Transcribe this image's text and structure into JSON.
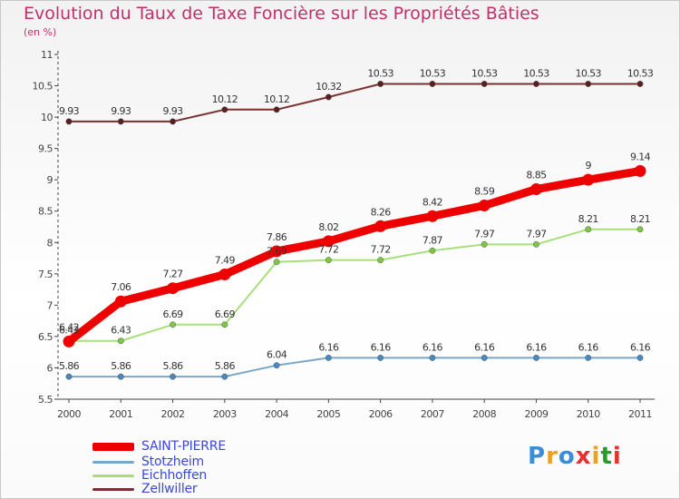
{
  "header": {
    "title": "Evolution du Taux de Taxe Foncière sur les Propriétés Bâties",
    "subtitle": "(en %)"
  },
  "brand": {
    "logo_text": "Proxiti"
  },
  "chart_data": {
    "type": "line",
    "x": [
      "2000",
      "2001",
      "2002",
      "2003",
      "2004",
      "2005",
      "2006",
      "2007",
      "2008",
      "2009",
      "2010",
      "2011"
    ],
    "ylim": [
      5.5,
      11
    ],
    "yticks": [
      "5.5",
      "6",
      "6.5",
      "7",
      "7.5",
      "8",
      "8.5",
      "9",
      "9.5",
      "10",
      "10.5",
      "11"
    ],
    "grid": false,
    "legend": "bottom-left",
    "series": [
      {
        "name": "SAINT-PIERRE",
        "color": "#ee0000",
        "marker": "#ee0000",
        "width": "thick",
        "values": [
          6.42,
          7.06,
          7.27,
          7.49,
          7.86,
          8.02,
          8.26,
          8.42,
          8.59,
          8.85,
          9,
          9.14
        ],
        "labels": [
          "6.42",
          "7.06",
          "7.27",
          "7.49",
          "7.86",
          "8.02",
          "8.26",
          "8.42",
          "8.59",
          "8.85",
          "9",
          "9.14"
        ]
      },
      {
        "name": "Stotzheim",
        "color": "#7aa6c8",
        "marker": "#4a88bd",
        "width": "thin",
        "values": [
          5.86,
          5.86,
          5.86,
          5.86,
          6.04,
          6.16,
          6.16,
          6.16,
          6.16,
          6.16,
          6.16,
          6.16
        ],
        "labels": [
          "5.86",
          "5.86",
          "5.86",
          "5.86",
          "6.04",
          "6.16",
          "6.16",
          "6.16",
          "6.16",
          "6.16",
          "6.16",
          "6.16"
        ]
      },
      {
        "name": "Eichhoffen",
        "color": "#a8e07a",
        "marker": "#7cc840",
        "width": "thin",
        "values": [
          6.43,
          6.43,
          6.69,
          6.69,
          7.69,
          7.72,
          7.72,
          7.87,
          7.97,
          7.97,
          8.21,
          8.21
        ],
        "labels": [
          "6.43",
          "6.43",
          "6.69",
          "6.69",
          "7.69",
          "7.72",
          "7.72",
          "7.87",
          "7.97",
          "7.97",
          "8.21",
          "8.21"
        ]
      },
      {
        "name": "Zellwiller",
        "color": "#7a3030",
        "marker": "#5a1f1f",
        "width": "thin",
        "values": [
          9.93,
          9.93,
          9.93,
          10.12,
          10.12,
          10.32,
          10.53,
          10.53,
          10.53,
          10.53,
          10.53,
          10.53
        ],
        "labels": [
          "9.93",
          "9.93",
          "9.93",
          "10.12",
          "10.12",
          "10.32",
          "10.53",
          "10.53",
          "10.53",
          "10.53",
          "10.53",
          "10.53"
        ]
      }
    ]
  }
}
